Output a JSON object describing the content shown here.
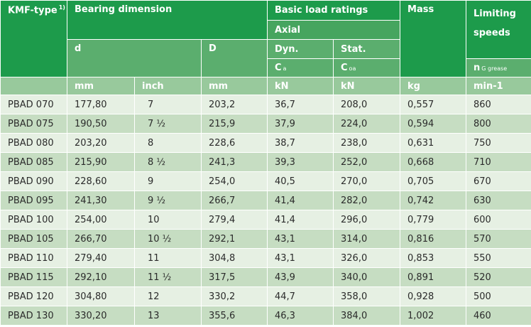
{
  "headers": {
    "kmf_type": "KMF-type",
    "kmf_type_note": "1)",
    "bearing_dimension": "Bearing dimension",
    "basic_load_ratings": "Basic load ratings",
    "axial": "Axial",
    "mass": "Mass",
    "limiting_speeds": "Limiting speeds",
    "d": "d",
    "D": "D",
    "dyn": "Dyn.",
    "stat": "Stat.",
    "ca_main": "C",
    "ca_sub": "a",
    "coa_main": "C",
    "coa_sub": "oa",
    "ng_main": "n",
    "ng_sub": "G grease"
  },
  "units": [
    "mm",
    "inch",
    "mm",
    "kN",
    "kN",
    "kg",
    "min-1"
  ],
  "rows": [
    [
      "PBAD 070",
      "177,80",
      "7",
      "203,2",
      "36,7",
      "208,0",
      "0,557",
      "860"
    ],
    [
      "PBAD 075",
      "190,50",
      "7 ½",
      "215,9",
      "37,9",
      "224,0",
      "0,594",
      "800"
    ],
    [
      "PBAD 080",
      "203,20",
      "8",
      "228,6",
      "38,7",
      "238,0",
      "0,631",
      "750"
    ],
    [
      "PBAD 085",
      "215,90",
      "8 ½",
      "241,3",
      "39,3",
      "252,0",
      "0,668",
      "710"
    ],
    [
      "PBAD 090",
      "228,60",
      "9",
      "254,0",
      "40,5",
      "270,0",
      "0,705",
      "670"
    ],
    [
      "PBAD 095",
      "241,30",
      "9 ½",
      "266,7",
      "41,4",
      "282,0",
      "0,742",
      "630"
    ],
    [
      "PBAD 100",
      "254,00",
      "10",
      "279,4",
      "41,4",
      "296,0",
      "0,779",
      "600"
    ],
    [
      "PBAD 105",
      "266,70",
      "10 ½",
      "292,1",
      "43,1",
      "314,0",
      "0,816",
      "570"
    ],
    [
      "PBAD 110",
      "279,40",
      "11",
      "304,8",
      "43,1",
      "326,0",
      "0,853",
      "550"
    ],
    [
      "PBAD 115",
      "292,10",
      "11 ½",
      "317,5",
      "43,9",
      "340,0",
      "0,891",
      "520"
    ],
    [
      "PBAD 120",
      "304,80",
      "12",
      "330,2",
      "44,7",
      "358,0",
      "0,928",
      "500"
    ],
    [
      "PBAD 130",
      "330,20",
      "13",
      "355,6",
      "46,3",
      "384,0",
      "1,002",
      "460"
    ]
  ]
}
